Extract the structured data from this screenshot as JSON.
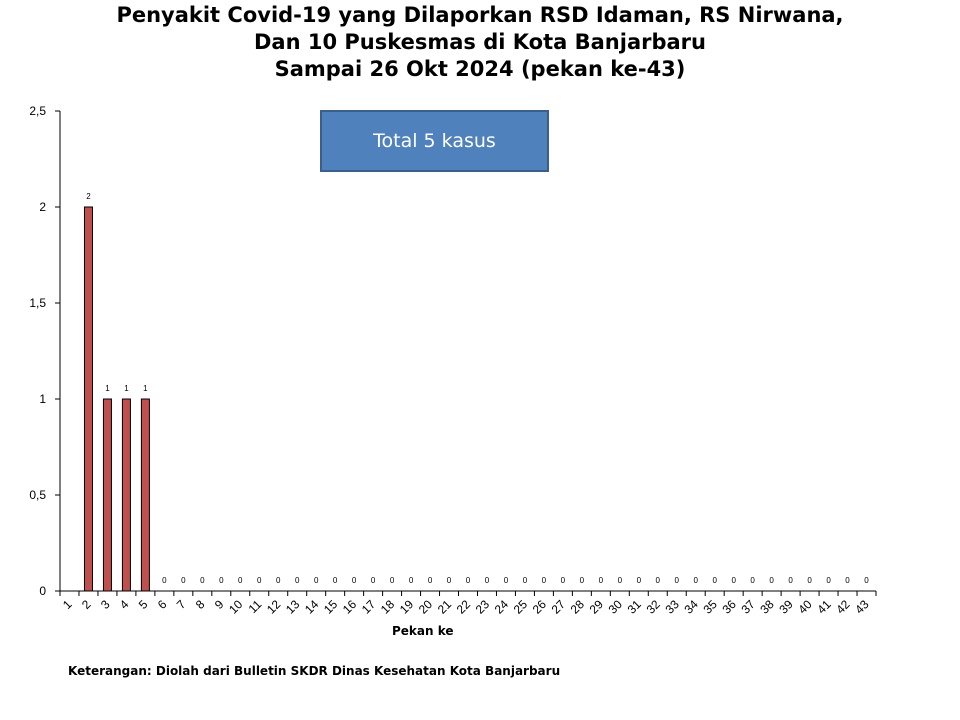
{
  "chart_data": {
    "type": "bar",
    "title_lines": [
      "Penyakit Covid-19 yang Dilaporkan RSD Idaman, RS Nirwana,",
      "Dan 10 Puskesmas di Kota Banjarbaru",
      "Sampai 26 Okt 2024 (pekan ke-43)"
    ],
    "xlabel": "Pekan ke",
    "ylabel": "",
    "ylim": [
      0,
      2.5
    ],
    "yticks": [
      "0",
      "0,5",
      "1",
      "1,5",
      "2",
      "2,5"
    ],
    "categories": [
      "1",
      "2",
      "3",
      "4",
      "5",
      "6",
      "7",
      "8",
      "9",
      "10",
      "11",
      "12",
      "13",
      "14",
      "15",
      "16",
      "17",
      "18",
      "19",
      "20",
      "21",
      "22",
      "23",
      "24",
      "25",
      "26",
      "27",
      "28",
      "29",
      "30",
      "31",
      "32",
      "33",
      "34",
      "35",
      "36",
      "37",
      "38",
      "39",
      "40",
      "41",
      "42",
      "43"
    ],
    "values": [
      null,
      2,
      1,
      1,
      1,
      0,
      0,
      0,
      0,
      0,
      0,
      0,
      0,
      0,
      0,
      0,
      0,
      0,
      0,
      0,
      0,
      0,
      0,
      0,
      0,
      0,
      0,
      0,
      0,
      0,
      0,
      0,
      0,
      0,
      0,
      0,
      0,
      0,
      0,
      0,
      0,
      0,
      0
    ],
    "bar_color": "#c0504d",
    "grid": false,
    "annotation": "Total 5 kasus",
    "note": "Keterangan: Diolah dari Bulletin SKDR Dinas Kesehatan Kota Banjarbaru"
  }
}
